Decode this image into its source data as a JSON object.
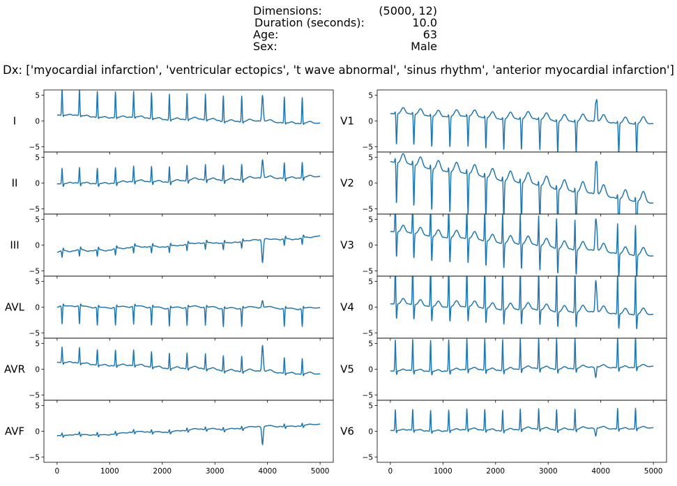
{
  "header": {
    "rows": [
      {
        "label": "Dimensions:",
        "value": "(5000, 12)"
      },
      {
        "label": "Duration (seconds):",
        "value": "10.0"
      },
      {
        "label": "Age:",
        "value": "63"
      },
      {
        "label": "Sex:",
        "value": "Male"
      }
    ],
    "dx": "Dx: ['myocardial infarction', 'ventricular ectopics', 't wave abnormal', 'sinus rhythm', 'anterior myocardial infarction']"
  },
  "colors": {
    "trace": "#1f77b4",
    "axes": "#000000",
    "background": "#ffffff"
  },
  "chart_data": {
    "type": "line",
    "title": "",
    "xlabel": "",
    "ylabel": "",
    "xlim": [
      -250,
      5250
    ],
    "ylim": [
      -6,
      6
    ],
    "x_ticks": [
      0,
      1000,
      2000,
      3000,
      4000,
      5000
    ],
    "y_ticks": [
      -5,
      0,
      5
    ],
    "grid": false,
    "layout": "6 rows x 2 columns, shared x axis",
    "beats": [
      95,
      425,
      765,
      1110,
      1455,
      1795,
      2135,
      2470,
      2820,
      3160,
      3510,
      3905,
      4320,
      4660
    ],
    "ectopic_beat": 3905,
    "series": [
      {
        "name": "I",
        "column": 0,
        "r": 5.0,
        "s": -0.3,
        "t": 0.3,
        "start": 1.0,
        "end": -0.5,
        "ectopic": 5.0
      },
      {
        "name": "II",
        "column": 0,
        "r": 3.0,
        "s": -0.6,
        "t": 0.3,
        "start": -0.3,
        "end": 1.2,
        "ectopic": 3.5
      },
      {
        "name": "III",
        "column": 0,
        "r": -1.3,
        "s": 0.5,
        "t": -0.2,
        "start": -1.3,
        "end": 1.7,
        "ectopic": -4.5
      },
      {
        "name": "AVL",
        "column": 0,
        "r": -3.5,
        "s": 0.4,
        "t": 0.1,
        "start": 0.1,
        "end": -0.2,
        "ectopic": 1.3
      },
      {
        "name": "AVR",
        "column": 0,
        "r": 3.0,
        "s": -0.4,
        "t": 0.3,
        "start": 1.2,
        "end": -1.0,
        "ectopic": 5.0
      },
      {
        "name": "AVF",
        "column": 0,
        "r": 0.5,
        "s": -0.4,
        "t": 0.1,
        "start": -1.0,
        "end": 1.3,
        "ectopic": -3.5
      },
      {
        "name": "V1",
        "column": 1,
        "r": 0.5,
        "s": -6.0,
        "t": 1.3,
        "start": 1.3,
        "end": -0.6,
        "ectopic": 3.5
      },
      {
        "name": "V2",
        "column": 1,
        "r": 1.0,
        "s": -8.0,
        "t": 2.0,
        "start": 4.0,
        "end": -4.0,
        "ectopic": 6.0
      },
      {
        "name": "V3",
        "column": 1,
        "r": 6.0,
        "s": -5.0,
        "t": 1.5,
        "start": 2.5,
        "end": -2.2,
        "ectopic": 6.0
      },
      {
        "name": "V4",
        "column": 1,
        "r": 8.0,
        "s": -3.0,
        "t": 1.2,
        "start": 0.5,
        "end": -1.5,
        "ectopic": 6.0
      },
      {
        "name": "V5",
        "column": 1,
        "r": 6.0,
        "s": -0.8,
        "t": 0.4,
        "start": -0.5,
        "end": 0.5,
        "ectopic": -2.0
      },
      {
        "name": "V6",
        "column": 1,
        "r": 4.0,
        "s": -0.5,
        "t": 0.3,
        "start": 0.0,
        "end": 0.6,
        "ectopic": -1.5
      }
    ]
  }
}
